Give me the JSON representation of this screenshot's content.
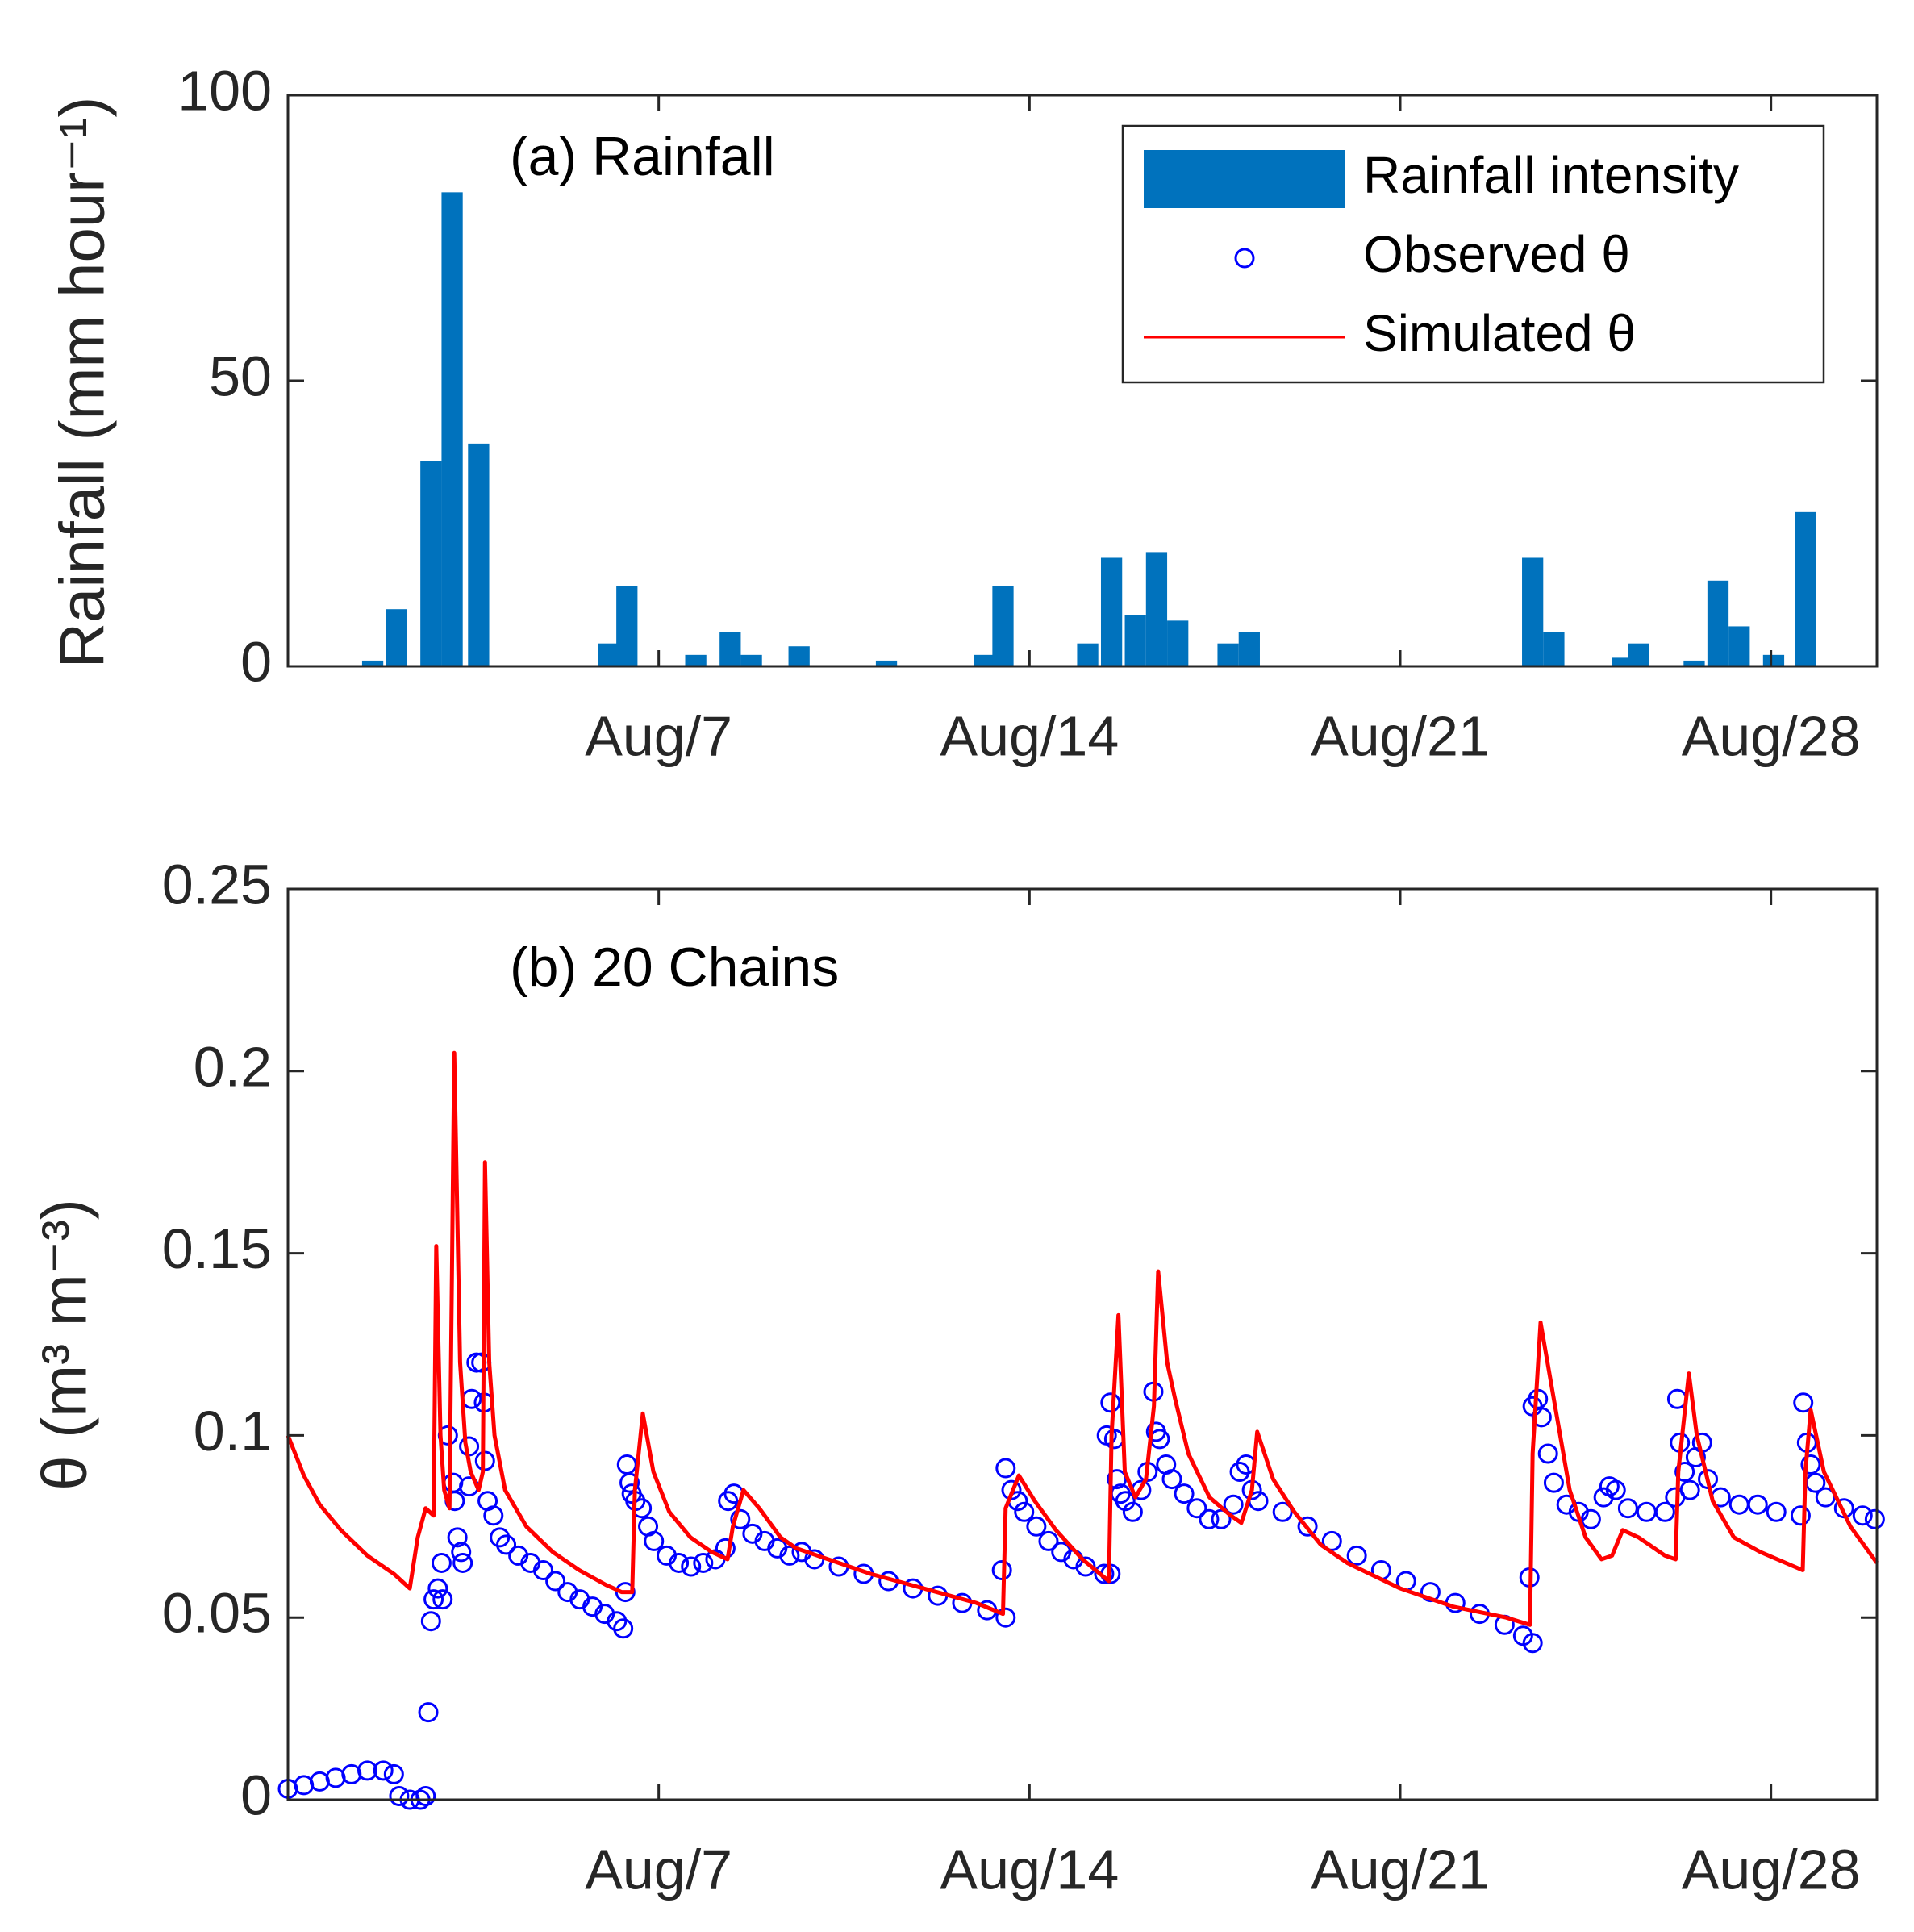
{
  "chart_data": [
    {
      "type": "bar",
      "annotation": "(a) Rainfall",
      "ylabel": "Rainfall (mm hour⁻¹)",
      "xlim": [
        0,
        30
      ],
      "xticks": [
        {
          "value": 7,
          "label": "Aug/7"
        },
        {
          "value": 14,
          "label": "Aug/14"
        },
        {
          "value": 21,
          "label": "Aug/21"
        },
        {
          "value": 28,
          "label": "Aug/28"
        }
      ],
      "ylim": [
        0,
        100
      ],
      "yticks": [
        0,
        50,
        100
      ],
      "legend": "upper right",
      "series": [
        {
          "name": "Rainfall intensity",
          "color": "#0072bd",
          "x": [
            1.6,
            2.05,
            2.7,
            3.1,
            3.6,
            6.05,
            6.4,
            7.7,
            8.35,
            8.75,
            9.65,
            11.3,
            13.15,
            13.5,
            15.1,
            15.55,
            16.0,
            16.4,
            16.8,
            17.75,
            18.15,
            23.5,
            23.9,
            25.2,
            25.5,
            26.55,
            27.0,
            27.4,
            28.05,
            28.65
          ],
          "values": [
            1,
            10,
            36,
            83,
            39,
            4,
            14,
            2,
            6,
            2,
            3.5,
            1,
            2,
            14,
            4,
            19,
            9,
            20,
            8,
            4,
            6,
            19,
            6,
            1.5,
            4,
            1,
            15,
            7,
            2,
            27
          ]
        }
      ]
    },
    {
      "type": "line",
      "annotation": "(b) 20 Chains",
      "ylabel": "θ (m³ m⁻³)",
      "xlim": [
        0,
        30
      ],
      "xticks": [
        {
          "value": 7,
          "label": "Aug/7"
        },
        {
          "value": 14,
          "label": "Aug/14"
        },
        {
          "value": 21,
          "label": "Aug/21"
        },
        {
          "value": 28,
          "label": "Aug/28"
        }
      ],
      "ylim": [
        0,
        0.25
      ],
      "yticks": [
        0,
        0.05,
        0.1,
        0.15,
        0.2,
        0.25
      ],
      "series": [
        {
          "name": "Observed θ",
          "type": "scatter",
          "color": "#0000ff",
          "x": [
            0,
            0.3,
            0.6,
            0.9,
            1.2,
            1.5,
            1.8,
            2.0,
            2.1,
            2.3,
            2.5,
            2.6,
            2.65,
            2.7,
            2.75,
            2.83,
            2.9,
            2.92,
            3.02,
            3.12,
            3.15,
            3.2,
            3.27,
            3.3,
            3.42,
            3.42,
            3.47,
            3.56,
            3.65,
            3.7,
            3.72,
            3.77,
            3.88,
            4.0,
            4.12,
            4.35,
            4.58,
            4.82,
            5.05,
            5.28,
            5.51,
            5.75,
            5.98,
            6.21,
            6.33,
            6.37,
            6.4,
            6.45,
            6.49,
            6.56,
            6.68,
            6.8,
            6.91,
            7.15,
            7.38,
            7.61,
            7.84,
            8.07,
            8.26,
            8.31,
            8.42,
            8.54,
            8.77,
            9.0,
            9.24,
            9.47,
            9.7,
            9.94,
            10.4,
            10.87,
            11.34,
            11.8,
            12.27,
            12.73,
            13.2,
            13.55,
            13.48,
            13.55,
            13.66,
            13.78,
            13.9,
            14.13,
            14.36,
            14.6,
            14.83,
            15.06,
            15.41,
            15.53,
            15.46,
            15.53,
            15.6,
            15.65,
            15.72,
            15.81,
            15.95,
            16.11,
            16.23,
            16.34,
            16.39,
            16.46,
            16.58,
            16.69,
            16.92,
            17.16,
            17.39,
            17.62,
            17.85,
            17.97,
            18.09,
            18.2,
            18.32,
            18.78,
            19.25,
            19.71,
            20.18,
            20.64,
            21.11,
            21.57,
            22.04,
            22.5,
            22.97,
            23.32,
            23.5,
            23.44,
            23.5,
            23.6,
            23.67,
            23.79,
            23.9,
            24.14,
            24.37,
            24.6,
            24.84,
            24.95,
            25.07,
            25.3,
            25.65,
            26.0,
            26.19,
            26.23,
            26.28,
            26.37,
            26.47,
            26.58,
            26.7,
            26.81,
            27.05,
            27.4,
            27.75,
            28.1,
            28.56,
            28.61,
            28.68,
            28.75,
            28.84,
            29.03,
            29.38,
            29.73,
            29.96
          ],
          "values": [
            0.003,
            0.004,
            0.005,
            0.006,
            0.007,
            0.008,
            0.008,
            0.007,
            0.001,
            0,
            0,
            0.001,
            0.024,
            0.049,
            0.055,
            0.058,
            0.065,
            0.055,
            0.1,
            0.087,
            0.082,
            0.072,
            0.068,
            0.065,
            0.097,
            0.086,
            0.11,
            0.12,
            0.12,
            0.109,
            0.093,
            0.082,
            0.078,
            0.072,
            0.07,
            0.067,
            0.065,
            0.063,
            0.06,
            0.057,
            0.055,
            0.053,
            0.051,
            0.049,
            0.047,
            0.057,
            0.092,
            0.087,
            0.084,
            0.082,
            0.08,
            0.075,
            0.071,
            0.067,
            0.065,
            0.064,
            0.065,
            0.066,
            0.069,
            0.082,
            0.084,
            0.077,
            0.073,
            0.071,
            0.069,
            0.067,
            0.068,
            0.066,
            0.064,
            0.062,
            0.06,
            0.058,
            0.056,
            0.054,
            0.052,
            0.05,
            0.063,
            0.091,
            0.085,
            0.082,
            0.079,
            0.075,
            0.071,
            0.068,
            0.066,
            0.064,
            0.062,
            0.062,
            0.1,
            0.109,
            0.099,
            0.088,
            0.084,
            0.082,
            0.079,
            0.085,
            0.09,
            0.112,
            0.101,
            0.099,
            0.092,
            0.088,
            0.084,
            0.08,
            0.077,
            0.077,
            0.081,
            0.09,
            0.092,
            0.085,
            0.082,
            0.079,
            0.075,
            0.071,
            0.067,
            0.063,
            0.06,
            0.057,
            0.054,
            0.051,
            0.048,
            0.045,
            0.043,
            0.061,
            0.108,
            0.11,
            0.105,
            0.095,
            0.087,
            0.081,
            0.079,
            0.077,
            0.083,
            0.086,
            0.085,
            0.08,
            0.079,
            0.079,
            0.083,
            0.11,
            0.098,
            0.09,
            0.085,
            0.094,
            0.098,
            0.088,
            0.083,
            0.081,
            0.081,
            0.079,
            0.078,
            0.109,
            0.098,
            0.092,
            0.087,
            0.083,
            0.08,
            0.078,
            0.077
          ]
        },
        {
          "name": "Simulated θ",
          "type": "line",
          "color": "#ff0000",
          "x": [
            0,
            0.3,
            0.6,
            1.0,
            1.5,
            2.0,
            2.3,
            2.45,
            2.6,
            2.75,
            2.8,
            2.88,
            2.95,
            3.05,
            3.14,
            3.25,
            3.35,
            3.45,
            3.6,
            3.68,
            3.72,
            3.8,
            3.9,
            4.1,
            4.5,
            5.0,
            5.5,
            6.0,
            6.3,
            6.5,
            6.55,
            6.7,
            6.9,
            7.2,
            7.6,
            8.0,
            8.3,
            8.4,
            8.6,
            8.9,
            9.3,
            9.6,
            10,
            11,
            12,
            13,
            13.5,
            13.55,
            13.8,
            14.1,
            14.5,
            15,
            15.5,
            15.55,
            15.68,
            15.8,
            16.0,
            16.2,
            16.35,
            16.43,
            16.6,
            16.75,
            17.0,
            17.4,
            17.8,
            18.0,
            18.2,
            18.3,
            18.6,
            19,
            19.5,
            20,
            21,
            22,
            23,
            23.45,
            23.5,
            23.65,
            23.9,
            24.2,
            24.5,
            24.8,
            25.0,
            25.2,
            25.5,
            26,
            26.2,
            26.25,
            26.45,
            26.6,
            26.9,
            27.3,
            27.8,
            28.6,
            28.65,
            28.75,
            29.0,
            29.5,
            30
          ],
          "values": [
            0.1,
            0.089,
            0.081,
            0.074,
            0.067,
            0.062,
            0.058,
            0.072,
            0.08,
            0.078,
            0.152,
            0.1,
            0.085,
            0.08,
            0.205,
            0.12,
            0.098,
            0.09,
            0.085,
            0.09,
            0.175,
            0.12,
            0.1,
            0.085,
            0.075,
            0.068,
            0.063,
            0.059,
            0.057,
            0.057,
            0.085,
            0.106,
            0.09,
            0.079,
            0.072,
            0.068,
            0.066,
            0.075,
            0.085,
            0.08,
            0.072,
            0.069,
            0.067,
            0.062,
            0.058,
            0.054,
            0.051,
            0.08,
            0.089,
            0.082,
            0.074,
            0.066,
            0.06,
            0.1,
            0.133,
            0.09,
            0.083,
            0.088,
            0.108,
            0.145,
            0.12,
            0.11,
            0.095,
            0.083,
            0.078,
            0.076,
            0.085,
            0.101,
            0.088,
            0.079,
            0.07,
            0.065,
            0.058,
            0.053,
            0.05,
            0.048,
            0.095,
            0.131,
            0.11,
            0.085,
            0.072,
            0.066,
            0.067,
            0.074,
            0.072,
            0.067,
            0.066,
            0.09,
            0.117,
            0.1,
            0.082,
            0.072,
            0.068,
            0.063,
            0.09,
            0.107,
            0.09,
            0.075,
            0.065
          ]
        }
      ]
    }
  ]
}
